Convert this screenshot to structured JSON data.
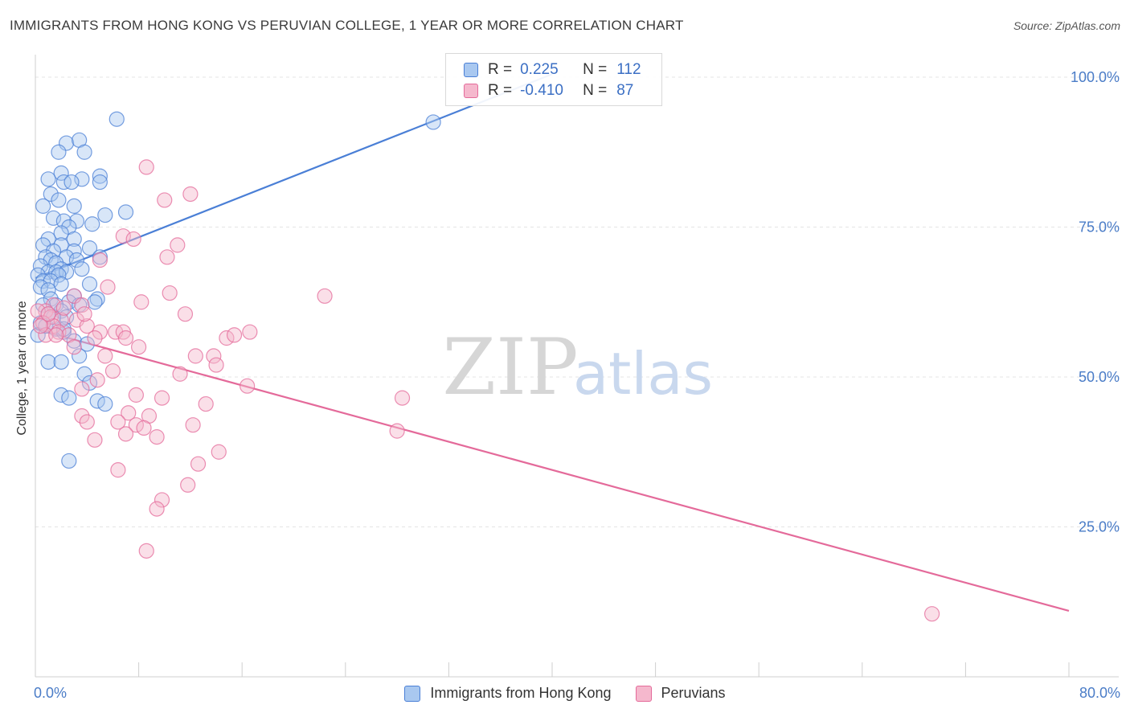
{
  "title": "IMMIGRANTS FROM HONG KONG VS PERUVIAN COLLEGE, 1 YEAR OR MORE CORRELATION CHART",
  "source": "Source: ZipAtlas.com",
  "watermark": {
    "zip": "ZIP",
    "atlas": "atlas"
  },
  "colors": {
    "blue": "#4a7fd6",
    "blue_fill": "#a9c8f0",
    "pink": "#e46a9a",
    "pink_fill": "#f5b8cd",
    "axis_text": "#4a7cc7"
  },
  "legend": {
    "rows": [
      {
        "r_label": "R =",
        "r_value": "0.225",
        "n_label": "N =",
        "n_value": "112"
      },
      {
        "r_label": "R =",
        "r_value": "-0.410",
        "n_label": "N =",
        "n_value": "87"
      }
    ]
  },
  "chart_data": {
    "type": "scatter",
    "xlabel": "",
    "ylabel": "College, 1 year or more",
    "xlim": [
      0,
      80
    ],
    "ylim": [
      0,
      100
    ],
    "x_tick_labels": {
      "min": "0.0%",
      "max": "80.0%"
    },
    "y_tick_labels": [
      "25.0%",
      "50.0%",
      "75.0%",
      "100.0%"
    ],
    "y_ticks": [
      25,
      50,
      75,
      100
    ],
    "series": [
      {
        "name": "Immigrants from Hong Kong",
        "color": "#4a7fd6",
        "trend": {
          "x": [
            0,
            40
          ],
          "y": [
            66.5,
            100.5
          ]
        },
        "points": [
          [
            6.3,
            93.0
          ],
          [
            2.4,
            89.0
          ],
          [
            3.4,
            89.5
          ],
          [
            1.8,
            87.5
          ],
          [
            3.8,
            87.5
          ],
          [
            2.0,
            84.0
          ],
          [
            5.0,
            83.5
          ],
          [
            1.0,
            83.0
          ],
          [
            2.2,
            82.5
          ],
          [
            3.6,
            83.0
          ],
          [
            5.0,
            82.5
          ],
          [
            2.8,
            82.5
          ],
          [
            1.2,
            80.5
          ],
          [
            1.8,
            79.5
          ],
          [
            0.6,
            78.5
          ],
          [
            3.0,
            78.5
          ],
          [
            7.0,
            77.5
          ],
          [
            1.4,
            76.5
          ],
          [
            3.2,
            76.0
          ],
          [
            2.2,
            76.0
          ],
          [
            5.4,
            77.0
          ],
          [
            4.4,
            75.5
          ],
          [
            2.6,
            75.0
          ],
          [
            2.0,
            74.0
          ],
          [
            1.0,
            73.0
          ],
          [
            3.0,
            73.0
          ],
          [
            2.0,
            72.0
          ],
          [
            0.6,
            72.0
          ],
          [
            4.2,
            71.5
          ],
          [
            3.0,
            71.0
          ],
          [
            1.4,
            71.0
          ],
          [
            0.8,
            70.0
          ],
          [
            2.4,
            70.0
          ],
          [
            1.2,
            69.5
          ],
          [
            3.2,
            69.5
          ],
          [
            5.0,
            70.0
          ],
          [
            1.6,
            69.0
          ],
          [
            0.4,
            68.5
          ],
          [
            2.0,
            68.0
          ],
          [
            1.0,
            67.5
          ],
          [
            1.6,
            67.5
          ],
          [
            2.4,
            67.5
          ],
          [
            0.2,
            67.0
          ],
          [
            3.6,
            68.0
          ],
          [
            1.8,
            67.0
          ],
          [
            0.6,
            66.0
          ],
          [
            1.2,
            66.0
          ],
          [
            2.0,
            65.5
          ],
          [
            4.2,
            65.5
          ],
          [
            0.4,
            65.0
          ],
          [
            1.0,
            64.5
          ],
          [
            3.0,
            63.5
          ],
          [
            1.2,
            63.0
          ],
          [
            4.8,
            63.0
          ],
          [
            2.6,
            62.5
          ],
          [
            1.6,
            62.0
          ],
          [
            3.4,
            62.0
          ],
          [
            4.6,
            62.5
          ],
          [
            0.6,
            62.0
          ],
          [
            2.0,
            61.0
          ],
          [
            1.0,
            60.5
          ],
          [
            2.4,
            60.0
          ],
          [
            0.4,
            59.0
          ],
          [
            1.6,
            58.0
          ],
          [
            2.2,
            57.5
          ],
          [
            3.0,
            56.0
          ],
          [
            0.2,
            57.0
          ],
          [
            1.0,
            52.5
          ],
          [
            2.0,
            52.5
          ],
          [
            3.4,
            53.5
          ],
          [
            4.0,
            55.5
          ],
          [
            3.8,
            50.5
          ],
          [
            4.2,
            49.0
          ],
          [
            2.0,
            47.0
          ],
          [
            2.6,
            46.5
          ],
          [
            4.8,
            46.0
          ],
          [
            5.4,
            45.5
          ],
          [
            2.6,
            36.0
          ],
          [
            30.8,
            92.5
          ],
          [
            0.8,
            58.5
          ],
          [
            1.4,
            60.0
          ],
          [
            2.2,
            58.0
          ]
        ]
      },
      {
        "name": "Peruvians",
        "color": "#e46a9a",
        "trend": {
          "x": [
            0,
            80
          ],
          "y": [
            58.0,
            11.0
          ]
        },
        "points": [
          [
            8.6,
            85.0
          ],
          [
            12.0,
            80.5
          ],
          [
            10.0,
            79.5
          ],
          [
            6.8,
            73.5
          ],
          [
            7.6,
            73.0
          ],
          [
            11.0,
            72.0
          ],
          [
            10.2,
            70.0
          ],
          [
            5.0,
            69.5
          ],
          [
            5.6,
            65.0
          ],
          [
            10.4,
            64.0
          ],
          [
            22.4,
            63.5
          ],
          [
            3.0,
            63.5
          ],
          [
            8.2,
            62.5
          ],
          [
            1.4,
            62.0
          ],
          [
            3.6,
            62.0
          ],
          [
            0.8,
            61.0
          ],
          [
            0.2,
            61.0
          ],
          [
            1.2,
            60.0
          ],
          [
            0.6,
            59.0
          ],
          [
            11.6,
            60.5
          ],
          [
            2.0,
            59.5
          ],
          [
            3.2,
            59.5
          ],
          [
            1.4,
            58.5
          ],
          [
            4.0,
            58.5
          ],
          [
            1.8,
            57.5
          ],
          [
            5.0,
            57.5
          ],
          [
            6.2,
            57.5
          ],
          [
            6.8,
            57.5
          ],
          [
            7.0,
            56.5
          ],
          [
            0.8,
            57.0
          ],
          [
            2.6,
            57.0
          ],
          [
            4.6,
            56.5
          ],
          [
            14.8,
            56.5
          ],
          [
            16.6,
            57.5
          ],
          [
            15.4,
            57.0
          ],
          [
            3.0,
            55.0
          ],
          [
            8.0,
            55.0
          ],
          [
            5.4,
            53.5
          ],
          [
            11.2,
            50.5
          ],
          [
            6.0,
            51.0
          ],
          [
            12.4,
            53.5
          ],
          [
            13.8,
            53.5
          ],
          [
            14.0,
            52.0
          ],
          [
            16.4,
            48.5
          ],
          [
            3.6,
            48.0
          ],
          [
            4.8,
            49.5
          ],
          [
            7.8,
            47.0
          ],
          [
            9.8,
            46.5
          ],
          [
            13.2,
            45.5
          ],
          [
            7.2,
            44.0
          ],
          [
            3.6,
            43.5
          ],
          [
            8.8,
            43.5
          ],
          [
            4.0,
            42.5
          ],
          [
            6.4,
            42.5
          ],
          [
            7.8,
            42.0
          ],
          [
            8.4,
            41.5
          ],
          [
            12.2,
            42.0
          ],
          [
            7.0,
            40.5
          ],
          [
            9.4,
            40.0
          ],
          [
            4.6,
            39.5
          ],
          [
            11.8,
            32.0
          ],
          [
            12.6,
            35.5
          ],
          [
            14.2,
            37.5
          ],
          [
            6.4,
            34.5
          ],
          [
            28.4,
            46.5
          ],
          [
            28.0,
            41.0
          ],
          [
            9.8,
            29.5
          ],
          [
            9.4,
            28.0
          ],
          [
            8.6,
            21.0
          ],
          [
            69.4,
            10.5
          ],
          [
            1.0,
            60.5
          ],
          [
            2.2,
            61.5
          ],
          [
            0.4,
            58.5
          ],
          [
            1.6,
            57.0
          ],
          [
            3.8,
            60.5
          ]
        ]
      }
    ]
  }
}
